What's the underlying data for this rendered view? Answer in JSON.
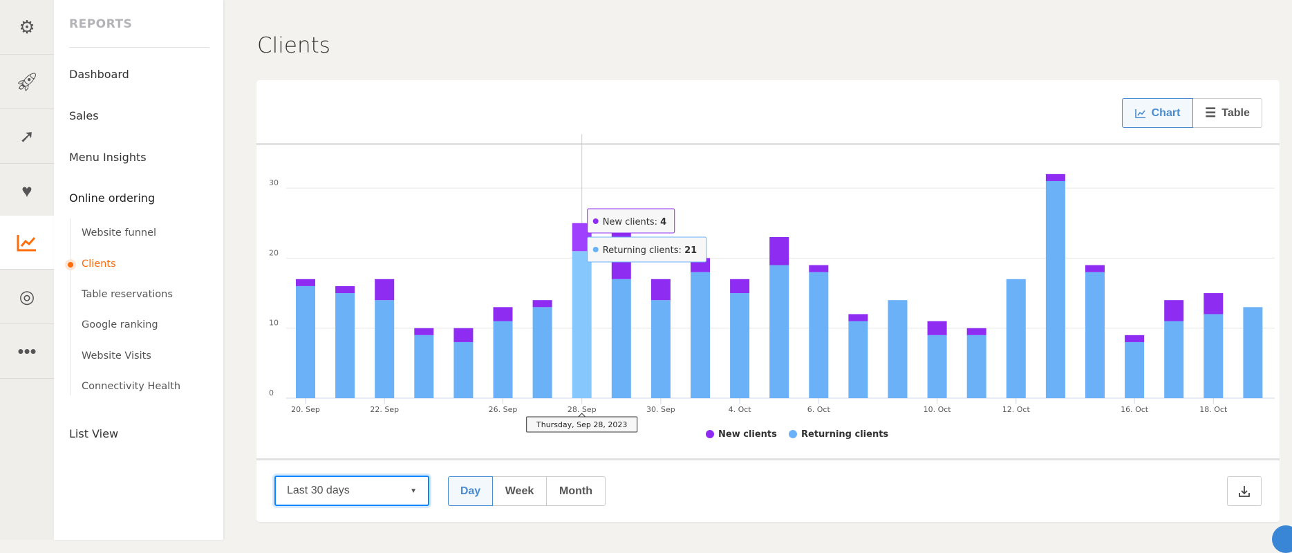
{
  "iconbar": {
    "items": [
      {
        "icon": "gears-icon"
      },
      {
        "icon": "rocket-icon"
      },
      {
        "icon": "arrow-circle-icon"
      },
      {
        "icon": "heartbeat-icon"
      },
      {
        "icon": "line-chart-icon",
        "active": true
      },
      {
        "icon": "target-icon"
      },
      {
        "icon": "more-icon"
      }
    ]
  },
  "sidebar": {
    "heading": "REPORTS",
    "items": [
      {
        "label": "Dashboard"
      },
      {
        "label": "Sales"
      },
      {
        "label": "Menu Insights"
      },
      {
        "label": "Online ordering"
      }
    ],
    "subitems": [
      {
        "label": "Website funnel"
      },
      {
        "label": "Clients",
        "active": true
      },
      {
        "label": "Table reservations"
      },
      {
        "label": "Google ranking"
      },
      {
        "label": "Website Visits"
      },
      {
        "label": "Connectivity Health"
      }
    ],
    "footer_item": "List View",
    "accent": "#ff6c0a"
  },
  "page": {
    "title": "Clients"
  },
  "view_toggle": {
    "chart": "Chart",
    "table": "Table",
    "selected": "Chart"
  },
  "chart_data": {
    "type": "bar",
    "stacked": true,
    "categories": [
      "20. Sep",
      "",
      "22. Sep",
      "",
      "",
      "26. Sep",
      "",
      "28. Sep",
      "",
      "30. Sep",
      "",
      "4. Oct",
      "",
      "6. Oct",
      "",
      "",
      "10. Oct",
      "",
      "12. Oct",
      "",
      "",
      "16. Oct",
      "",
      "18. Oct",
      ""
    ],
    "series": [
      {
        "name": "New clients",
        "color": "#8e2cf2",
        "values": [
          1,
          1,
          3,
          1,
          2,
          2,
          1,
          4,
          7,
          3,
          2,
          2,
          4,
          1,
          1,
          0,
          2,
          1,
          0,
          1,
          1,
          1,
          3,
          3,
          0
        ]
      },
      {
        "name": "Returning clients",
        "color": "#6ab1f7",
        "values": [
          16,
          15,
          14,
          9,
          8,
          11,
          13,
          21,
          17,
          14,
          18,
          15,
          19,
          18,
          11,
          14,
          9,
          9,
          17,
          31,
          18,
          8,
          11,
          12,
          13
        ]
      }
    ],
    "yticks": [
      0,
      10,
      20,
      30
    ],
    "ylim": [
      0,
      32
    ],
    "grid": true,
    "legend": "bottom-center",
    "tooltip": {
      "date": "Thursday, Sep 28, 2023",
      "new_label": "New clients: ",
      "new_value": "4",
      "returning_label": "Returning clients: ",
      "returning_value": "21",
      "index": 7
    }
  },
  "footer": {
    "range": "Last 30 days",
    "granularity": [
      "Day",
      "Week",
      "Month"
    ],
    "selected": "Day",
    "download_icon": "download-icon"
  }
}
